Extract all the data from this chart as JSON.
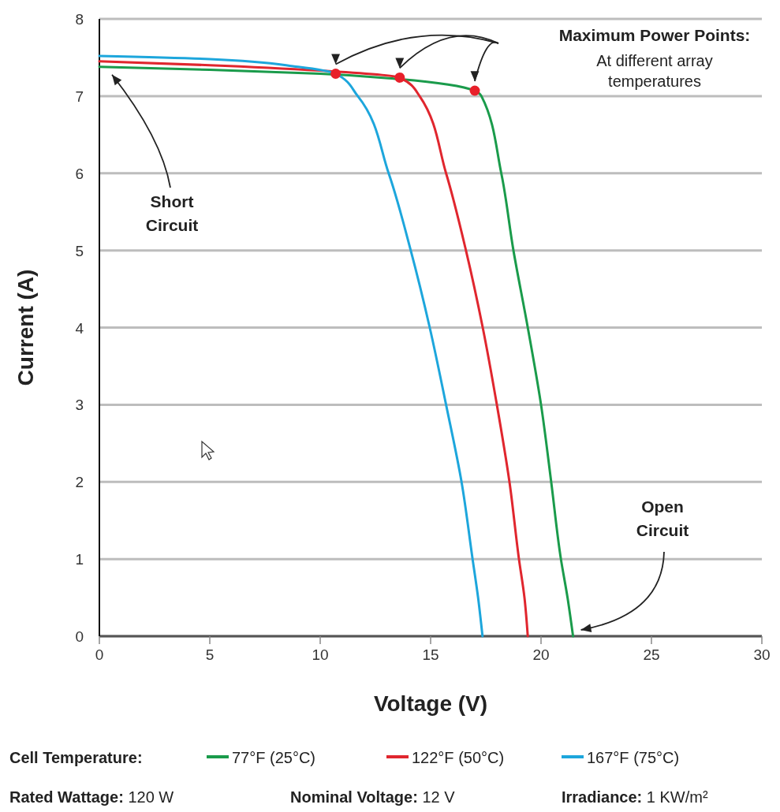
{
  "chart_data": {
    "type": "line",
    "xlabel": "Voltage (V)",
    "ylabel": "Current (A)",
    "legend_title": "Cell Temperature:",
    "xlim": [
      0,
      30
    ],
    "ylim": [
      0,
      8
    ],
    "xticks": [
      0,
      5,
      10,
      15,
      20,
      25,
      30
    ],
    "yticks": [
      0,
      1,
      2,
      3,
      4,
      5,
      6,
      7,
      8
    ],
    "grid": "y",
    "legend": "bottom",
    "line_style": "solid",
    "series": [
      {
        "name": "77°F (25°C)",
        "color": "#1a9b4b",
        "x": [
          0,
          5,
          10,
          13.6,
          17.0,
          17.3,
          18.2,
          18.75,
          19.4,
          20.0,
          20.46,
          20.9,
          21.2,
          21.45
        ],
        "values": [
          7.38,
          7.34,
          7.29,
          7.22,
          7.07,
          7,
          6,
          5,
          4,
          3,
          2,
          1,
          0.5,
          0
        ]
      },
      {
        "name": "122°F (50°C)",
        "color": "#e0262e",
        "x": [
          0,
          5,
          10,
          13.6,
          14.5,
          15.7,
          16.6,
          17.36,
          18.0,
          18.57,
          19.0,
          19.25,
          19.4
        ],
        "values": [
          7.45,
          7.4,
          7.33,
          7.24,
          7,
          6,
          5,
          4,
          3,
          2,
          1,
          0.5,
          0
        ]
      },
      {
        "name": "167°F (75°C)",
        "color": "#1da6dc",
        "x": [
          0,
          5,
          9,
          10.7,
          11.7,
          13.1,
          14.1,
          14.96,
          15.7,
          16.4,
          16.9,
          17.15,
          17.35
        ],
        "values": [
          7.52,
          7.48,
          7.38,
          7.29,
          7,
          6,
          5,
          4,
          3,
          2,
          1,
          0.5,
          0
        ]
      },
      {
        "type": "scatter",
        "color": "#e8202a",
        "marker": "circle",
        "x": [
          10.7,
          13.6,
          17.0
        ],
        "values": [
          7.29,
          7.24,
          7.07
        ]
      }
    ],
    "annotations": [
      "Short Circuit",
      "Open Circuit",
      "Maximum Power Points:",
      "At different array temperatures",
      "Rated Wattage: 120 W",
      "Nominal Voltage: 12 V",
      "Irradiance: 1 KW/m²"
    ]
  }
}
